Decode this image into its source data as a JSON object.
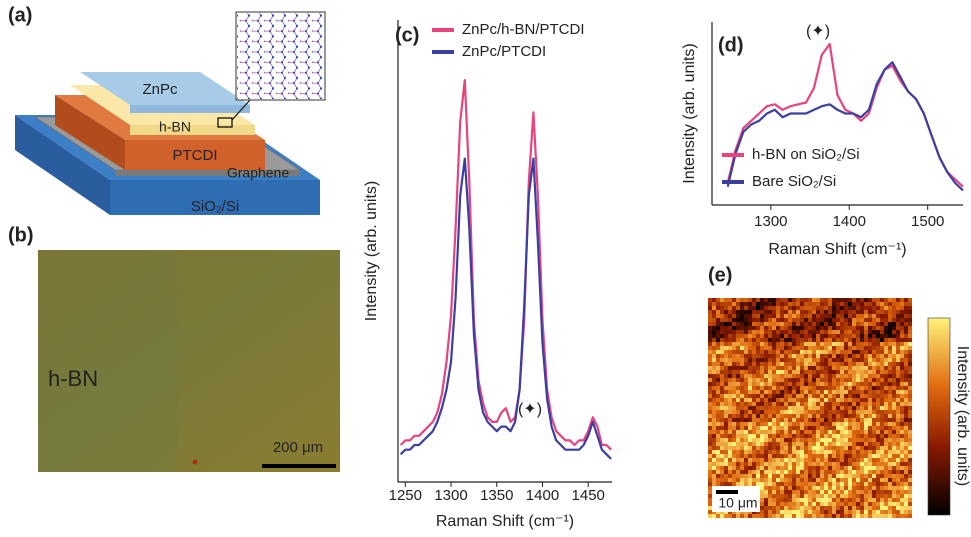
{
  "panel_labels": [
    "(a)",
    "(b)",
    "(c)",
    "(d)",
    "(e)"
  ],
  "schematic": {
    "layers": [
      "ZnPc",
      "h-BN",
      "PTCDI",
      "Graphene",
      "SiO₂/Si"
    ]
  },
  "micrograph": {
    "label": "h-BN",
    "scale_bar": "200 μm"
  },
  "map": {
    "colorbar_label": "Intensity (arb. units)",
    "scale_bar": "10 μm"
  },
  "chart_data": [
    {
      "type": "line",
      "x_label": "Raman Shift (cm⁻¹)",
      "y_label": "Intensity (arb. units)",
      "annotation": "(✦)",
      "legend": "upper right",
      "x": [
        1245,
        1250,
        1255,
        1260,
        1265,
        1270,
        1275,
        1280,
        1285,
        1290,
        1295,
        1300,
        1305,
        1310,
        1315,
        1320,
        1325,
        1330,
        1335,
        1340,
        1345,
        1350,
        1355,
        1360,
        1365,
        1370,
        1375,
        1380,
        1385,
        1390,
        1395,
        1400,
        1405,
        1410,
        1415,
        1420,
        1425,
        1430,
        1435,
        1440,
        1445,
        1450,
        1455,
        1460,
        1465,
        1470,
        1475
      ],
      "series": [
        {
          "name": "ZnPc/h-BN/PTCDI",
          "color": "#e8437f",
          "values": [
            8,
            9,
            9,
            10,
            10,
            11,
            12,
            13,
            15,
            19,
            26,
            36,
            55,
            78,
            87,
            65,
            35,
            22,
            17,
            14,
            13,
            13,
            15,
            16,
            13,
            14,
            20,
            35,
            65,
            80,
            62,
            35,
            20,
            14,
            11,
            10,
            9,
            9,
            8,
            9,
            9,
            11,
            14,
            12,
            8,
            8,
            7
          ]
        },
        {
          "name": "ZnPc/PTCDI",
          "color": "#3a3fa0",
          "values": [
            6,
            7,
            7,
            8,
            8,
            9,
            10,
            11,
            13,
            16,
            20,
            26,
            40,
            62,
            70,
            55,
            32,
            20,
            15,
            13,
            12,
            11,
            12,
            12,
            11,
            13,
            20,
            38,
            62,
            70,
            52,
            30,
            18,
            12,
            9,
            8,
            7,
            7,
            7,
            7,
            8,
            10,
            13,
            10,
            7,
            6,
            5
          ]
        }
      ],
      "xlim": [
        1242,
        1476
      ],
      "ylim": [
        0,
        100
      ],
      "xticks": [
        1250,
        1300,
        1350,
        1400,
        1450
      ]
    },
    {
      "type": "line",
      "x_label": "Raman Shift (cm⁻¹)",
      "y_label": "Intensity (arb. units)",
      "annotation": "(✦)",
      "legend": "lower left",
      "x": [
        1245,
        1255,
        1265,
        1275,
        1285,
        1295,
        1305,
        1315,
        1325,
        1335,
        1345,
        1355,
        1365,
        1375,
        1385,
        1395,
        1405,
        1415,
        1425,
        1435,
        1445,
        1455,
        1465,
        1475,
        1485,
        1495,
        1505,
        1515,
        1525,
        1535,
        1545
      ],
      "series": [
        {
          "name": "h-BN on SiO₂/Si",
          "color": "#e8437f",
          "values": [
            12,
            30,
            42,
            46,
            50,
            54,
            55,
            52,
            54,
            55,
            56,
            64,
            82,
            88,
            60,
            52,
            50,
            46,
            50,
            64,
            74,
            76,
            68,
            62,
            58,
            50,
            38,
            26,
            18,
            14,
            10
          ]
        },
        {
          "name": "Bare SiO₂/Si",
          "color": "#3a3fa0",
          "values": [
            10,
            28,
            40,
            44,
            46,
            50,
            52,
            48,
            50,
            50,
            50,
            52,
            54,
            55,
            52,
            50,
            50,
            48,
            52,
            66,
            74,
            78,
            70,
            62,
            58,
            50,
            38,
            26,
            18,
            12,
            8
          ]
        }
      ],
      "xlim": [
        1225,
        1545
      ],
      "ylim": [
        0,
        100
      ],
      "xticks": [
        1300,
        1400,
        1500
      ]
    }
  ]
}
